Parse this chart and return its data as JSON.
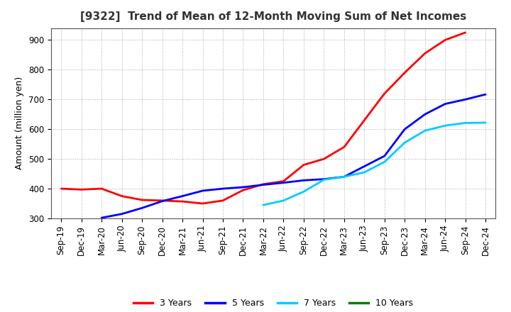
{
  "title": "[9322]  Trend of Mean of 12-Month Moving Sum of Net Incomes",
  "ylabel": "Amount (million yen)",
  "background_color": "#ffffff",
  "ylim": [
    300,
    940
  ],
  "yticks": [
    300,
    400,
    500,
    600,
    700,
    800,
    900
  ],
  "series": {
    "3 Years": {
      "color": "#ff0000",
      "data": [
        [
          "Sep-19",
          400
        ],
        [
          "Dec-19",
          397
        ],
        [
          "Mar-20",
          400
        ],
        [
          "Jun-20",
          375
        ],
        [
          "Sep-20",
          362
        ],
        [
          "Dec-20",
          360
        ],
        [
          "Mar-21",
          357
        ],
        [
          "Jun-21",
          350
        ],
        [
          "Sep-21",
          360
        ],
        [
          "Dec-21",
          395
        ],
        [
          "Mar-22",
          415
        ],
        [
          "Jun-22",
          425
        ],
        [
          "Sep-22",
          480
        ],
        [
          "Dec-22",
          500
        ],
        [
          "Mar-23",
          540
        ],
        [
          "Jun-23",
          630
        ],
        [
          "Sep-23",
          720
        ],
        [
          "Dec-23",
          790
        ],
        [
          "Mar-24",
          855
        ],
        [
          "Jun-24",
          900
        ],
        [
          "Sep-24",
          925
        ]
      ]
    },
    "5 Years": {
      "color": "#0000ff",
      "data": [
        [
          "Mar-20",
          302
        ],
        [
          "Jun-20",
          315
        ],
        [
          "Sep-20",
          335
        ],
        [
          "Dec-20",
          358
        ],
        [
          "Mar-21",
          375
        ],
        [
          "Jun-21",
          393
        ],
        [
          "Sep-21",
          400
        ],
        [
          "Dec-21",
          405
        ],
        [
          "Mar-22",
          413
        ],
        [
          "Jun-22",
          420
        ],
        [
          "Sep-22",
          428
        ],
        [
          "Dec-22",
          432
        ],
        [
          "Mar-23",
          440
        ],
        [
          "Jun-23",
          475
        ],
        [
          "Sep-23",
          510
        ],
        [
          "Dec-23",
          600
        ],
        [
          "Mar-24",
          650
        ],
        [
          "Jun-24",
          685
        ],
        [
          "Sep-24",
          700
        ],
        [
          "Dec-24",
          717
        ]
      ]
    },
    "7 Years": {
      "color": "#00ccff",
      "data": [
        [
          "Mar-22",
          345
        ],
        [
          "Jun-22",
          360
        ],
        [
          "Sep-22",
          390
        ],
        [
          "Dec-22",
          430
        ],
        [
          "Mar-23",
          440
        ],
        [
          "Jun-23",
          455
        ],
        [
          "Sep-23",
          490
        ],
        [
          "Dec-23",
          555
        ],
        [
          "Mar-24",
          595
        ],
        [
          "Jun-24",
          612
        ],
        [
          "Sep-24",
          621
        ],
        [
          "Dec-24",
          622
        ]
      ]
    },
    "10 Years": {
      "color": "#008000",
      "data": []
    }
  },
  "xtick_labels": [
    "Sep-19",
    "Dec-19",
    "Mar-20",
    "Jun-20",
    "Sep-20",
    "Dec-20",
    "Mar-21",
    "Jun-21",
    "Sep-21",
    "Dec-21",
    "Mar-22",
    "Jun-22",
    "Sep-22",
    "Dec-22",
    "Mar-23",
    "Jun-23",
    "Sep-23",
    "Dec-23",
    "Mar-24",
    "Jun-24",
    "Sep-24",
    "Dec-24"
  ],
  "legend_entries": [
    "3 Years",
    "5 Years",
    "7 Years",
    "10 Years"
  ],
  "legend_colors": [
    "#ff0000",
    "#0000ff",
    "#00ccff",
    "#008000"
  ],
  "title_fontsize": 11,
  "ylabel_fontsize": 9,
  "tick_fontsize": 8.5,
  "legend_fontsize": 9,
  "linewidth": 2.0
}
